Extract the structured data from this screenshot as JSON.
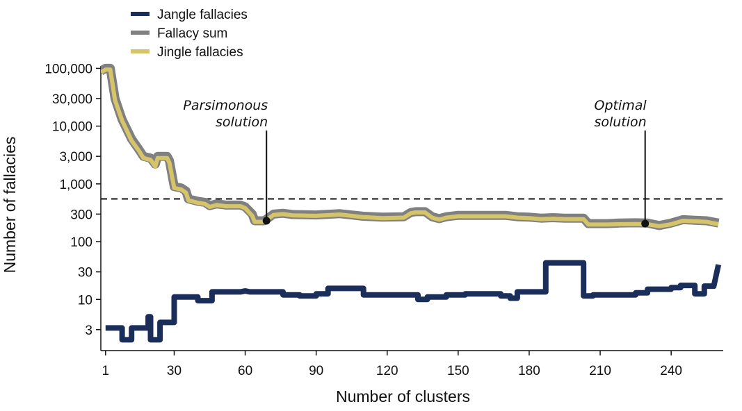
{
  "chart_data": {
    "type": "line",
    "xlabel": "Number of clusters",
    "ylabel": "Number of fallacies",
    "xlim": [
      -1,
      262
    ],
    "ylim": [
      1.3,
      110000
    ],
    "y_scale": "log",
    "grid": false,
    "legend_position": "top-left",
    "x_ticks": [
      1,
      30,
      60,
      90,
      120,
      150,
      180,
      210,
      240
    ],
    "x_tick_labels": [
      "1",
      "30",
      "60",
      "90",
      "120",
      "150",
      "180",
      "210",
      "240"
    ],
    "y_ticks": [
      3,
      10,
      30,
      100,
      300,
      1000,
      3000,
      10000,
      30000,
      100000
    ],
    "y_tick_labels": [
      "3",
      "10",
      "30",
      "100",
      "300",
      "1,000",
      "3,000",
      "10,000",
      "30,000",
      "100,000"
    ],
    "series": [
      {
        "name": "Jangle fallacies",
        "color": "#1b2e5a",
        "points": [
          [
            1,
            3.2
          ],
          [
            8,
            3.2
          ],
          [
            8,
            2
          ],
          [
            12,
            2
          ],
          [
            12,
            3.2
          ],
          [
            19,
            3.2
          ],
          [
            19,
            5
          ],
          [
            20,
            5
          ],
          [
            20,
            2
          ],
          [
            24,
            2
          ],
          [
            24,
            4
          ],
          [
            30,
            4
          ],
          [
            30,
            11
          ],
          [
            40,
            11
          ],
          [
            40,
            9.5
          ],
          [
            46,
            9.5
          ],
          [
            46,
            13.5
          ],
          [
            58,
            13.5
          ],
          [
            60,
            14
          ],
          [
            62,
            13.5
          ],
          [
            76,
            13.5
          ],
          [
            76,
            12
          ],
          [
            83,
            12
          ],
          [
            83,
            11.5
          ],
          [
            90,
            11.5
          ],
          [
            90,
            12.5
          ],
          [
            95,
            12.5
          ],
          [
            95,
            15.5
          ],
          [
            110,
            15.5
          ],
          [
            110,
            12
          ],
          [
            133,
            12
          ],
          [
            133,
            10
          ],
          [
            137,
            10
          ],
          [
            137,
            11
          ],
          [
            145,
            11
          ],
          [
            145,
            12
          ],
          [
            153,
            12
          ],
          [
            153,
            12.5
          ],
          [
            168,
            12.5
          ],
          [
            168,
            11.5
          ],
          [
            172,
            11.5
          ],
          [
            172,
            10.5
          ],
          [
            175,
            10.5
          ],
          [
            175,
            13.5
          ],
          [
            187,
            13.5
          ],
          [
            187,
            43
          ],
          [
            203,
            43
          ],
          [
            203,
            11.5
          ],
          [
            207,
            11.5
          ],
          [
            207,
            12
          ],
          [
            225,
            12
          ],
          [
            225,
            13
          ],
          [
            230,
            13
          ],
          [
            230,
            15
          ],
          [
            240,
            15
          ],
          [
            240,
            16
          ],
          [
            244,
            16
          ],
          [
            244,
            17.5
          ],
          [
            250,
            17.5
          ],
          [
            250,
            12.5
          ],
          [
            254,
            12.5
          ],
          [
            254,
            17
          ],
          [
            258,
            17
          ],
          [
            260,
            40
          ]
        ]
      },
      {
        "name": "Fallacy sum",
        "color": "#808080",
        "points": [
          [
            -1,
            90000
          ],
          [
            1,
            100000
          ],
          [
            3,
            100000
          ],
          [
            5,
            30000
          ],
          [
            8,
            13000
          ],
          [
            12,
            6000
          ],
          [
            15,
            4000
          ],
          [
            17,
            3000
          ],
          [
            20,
            2800
          ],
          [
            22,
            2200
          ],
          [
            23,
            3000
          ],
          [
            27,
            3000
          ],
          [
            28,
            2500
          ],
          [
            30,
            900
          ],
          [
            33,
            850
          ],
          [
            35,
            750
          ],
          [
            36,
            550
          ],
          [
            40,
            500
          ],
          [
            43,
            480
          ],
          [
            45,
            420
          ],
          [
            48,
            450
          ],
          [
            52,
            430
          ],
          [
            58,
            430
          ],
          [
            60,
            400
          ],
          [
            63,
            300
          ],
          [
            64,
            230
          ],
          [
            68,
            230
          ],
          [
            72,
            300
          ],
          [
            76,
            310
          ],
          [
            80,
            295
          ],
          [
            90,
            290
          ],
          [
            100,
            305
          ],
          [
            110,
            275
          ],
          [
            118,
            265
          ],
          [
            127,
            270
          ],
          [
            130,
            320
          ],
          [
            132,
            330
          ],
          [
            136,
            330
          ],
          [
            139,
            270
          ],
          [
            142,
            250
          ],
          [
            145,
            270
          ],
          [
            150,
            285
          ],
          [
            160,
            285
          ],
          [
            170,
            285
          ],
          [
            175,
            270
          ],
          [
            180,
            265
          ],
          [
            185,
            255
          ],
          [
            190,
            260
          ],
          [
            195,
            255
          ],
          [
            203,
            255
          ],
          [
            205,
            205
          ],
          [
            213,
            205
          ],
          [
            218,
            210
          ],
          [
            225,
            212
          ],
          [
            230,
            210
          ],
          [
            235,
            190
          ],
          [
            240,
            210
          ],
          [
            245,
            240
          ],
          [
            250,
            235
          ],
          [
            255,
            230
          ],
          [
            260,
            210
          ]
        ]
      },
      {
        "name": "Jingle fallacies",
        "color": "#d6c46a",
        "points": [
          [
            -1,
            85000
          ],
          [
            1,
            95000
          ],
          [
            3,
            95000
          ],
          [
            5,
            28000
          ],
          [
            8,
            12500
          ],
          [
            12,
            5600
          ],
          [
            15,
            3800
          ],
          [
            17,
            2800
          ],
          [
            20,
            2600
          ],
          [
            22,
            2000
          ],
          [
            23,
            2800
          ],
          [
            27,
            2800
          ],
          [
            28,
            2300
          ],
          [
            30,
            850
          ],
          [
            33,
            800
          ],
          [
            35,
            700
          ],
          [
            36,
            520
          ],
          [
            40,
            470
          ],
          [
            43,
            450
          ],
          [
            45,
            400
          ],
          [
            48,
            430
          ],
          [
            52,
            410
          ],
          [
            58,
            410
          ],
          [
            60,
            380
          ],
          [
            63,
            280
          ],
          [
            64,
            220
          ],
          [
            68,
            220
          ],
          [
            72,
            290
          ],
          [
            76,
            300
          ],
          [
            80,
            285
          ],
          [
            90,
            280
          ],
          [
            100,
            295
          ],
          [
            110,
            265
          ],
          [
            118,
            255
          ],
          [
            127,
            260
          ],
          [
            130,
            310
          ],
          [
            132,
            320
          ],
          [
            136,
            320
          ],
          [
            139,
            260
          ],
          [
            142,
            240
          ],
          [
            145,
            260
          ],
          [
            150,
            275
          ],
          [
            160,
            275
          ],
          [
            170,
            275
          ],
          [
            175,
            260
          ],
          [
            180,
            255
          ],
          [
            185,
            245
          ],
          [
            190,
            250
          ],
          [
            195,
            245
          ],
          [
            203,
            245
          ],
          [
            205,
            198
          ],
          [
            213,
            198
          ],
          [
            218,
            200
          ],
          [
            225,
            202
          ],
          [
            230,
            200
          ],
          [
            235,
            185
          ],
          [
            240,
            200
          ],
          [
            245,
            230
          ],
          [
            250,
            225
          ],
          [
            255,
            220
          ],
          [
            260,
            200
          ]
        ]
      }
    ],
    "threshold": {
      "y": 550,
      "style": "dashed"
    },
    "annotations": [
      {
        "lines": [
          "Parsimonous",
          "solution"
        ],
        "x": 69,
        "y": 230
      },
      {
        "lines": [
          "Optimal",
          "solution"
        ],
        "x": 229,
        "y": 205
      }
    ]
  }
}
